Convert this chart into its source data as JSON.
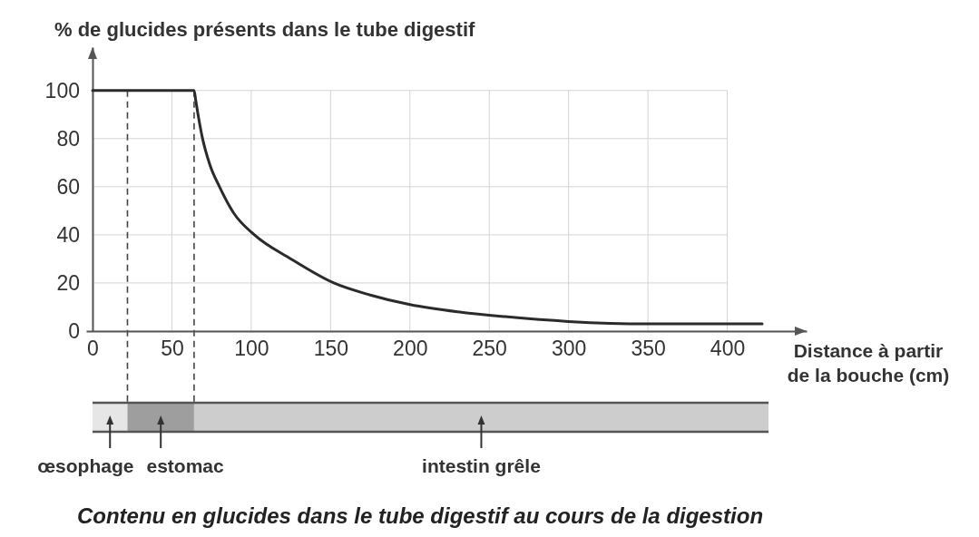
{
  "chart_data": {
    "type": "line",
    "title": "Contenu en glucides dans le tube digestif au cours de la digestion",
    "ylabel": "% de glucides présents dans le tube digestif",
    "xlabel": "Distance à partir\nde la bouche (cm)",
    "x": [
      0,
      64,
      65,
      67,
      69,
      74,
      80,
      89,
      102,
      125,
      152,
      175,
      200,
      230,
      260,
      300,
      350,
      422
    ],
    "series": [
      {
        "color": "#2b2b2b",
        "values": [
          100,
          100,
          96,
          88,
          81,
          69,
          60,
          49,
          40,
          30,
          20,
          15,
          11,
          8,
          6,
          4,
          3,
          3
        ]
      }
    ],
    "xlim": [
      -4,
      450
    ],
    "ylim": [
      0,
      118
    ],
    "xticks": [
      0,
      50,
      100,
      150,
      200,
      250,
      300,
      350,
      400
    ],
    "yticks": [
      0,
      20,
      40,
      60,
      80,
      100
    ],
    "grid": true,
    "ref_lines": [
      {
        "axis": "x",
        "value": 22,
        "color": "#444444",
        "line_style": "dashed"
      },
      {
        "axis": "x",
        "value": 64,
        "color": "#444444",
        "line_style": "dashed"
      }
    ],
    "annotations": [
      "œsophage",
      "estomac",
      "intestin grêle"
    ]
  }
}
